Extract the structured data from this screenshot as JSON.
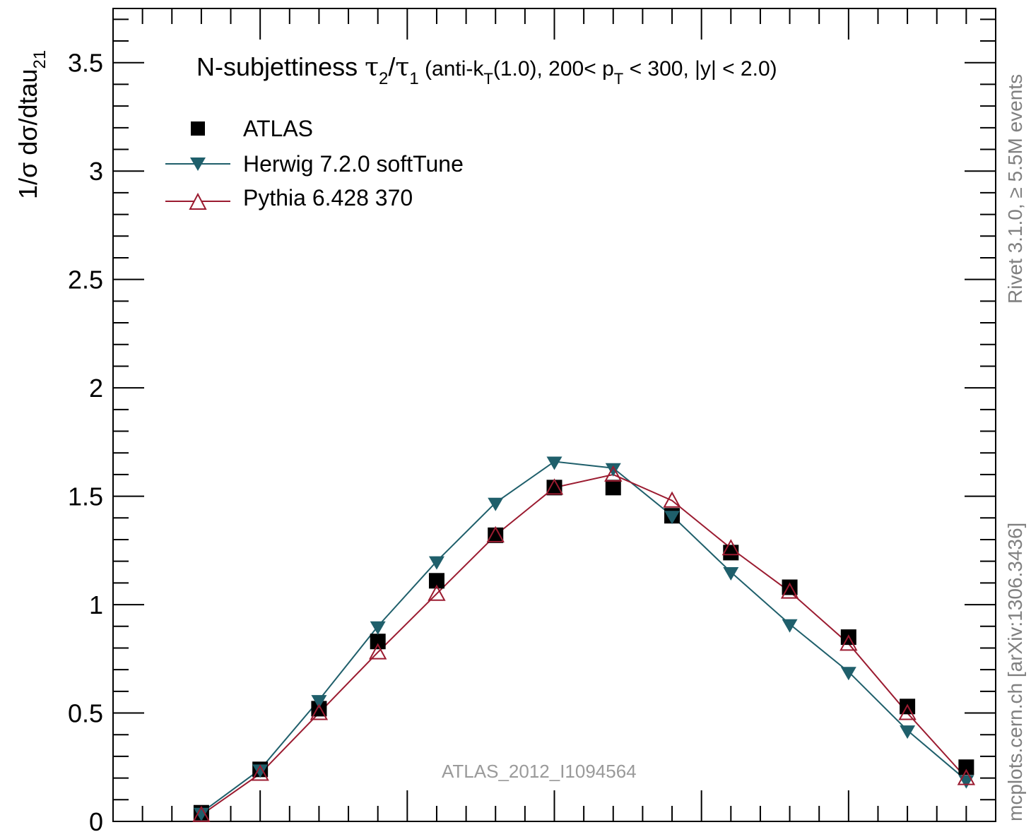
{
  "chart_data": {
    "type": "line",
    "title": {
      "prefix": "N-subjettiness ",
      "tau": "τ",
      "sub2": "2",
      "slash": "/",
      "sub1": "1",
      "detail_a": " (anti-k",
      "sub_t": "T",
      "detail_b": "(1.0), 200< p",
      "sub_t2": "T",
      "detail_c": " < 300, |y| < 2.0)"
    },
    "ylabel": "1/σ dσ/dtau",
    "ylabel_sub": "21",
    "xlabel": "",
    "ylim": [
      0,
      3.75
    ],
    "xlim": [
      0,
      1.2
    ],
    "yticks": [
      "0",
      "0.5",
      "1",
      "1.5",
      "2",
      "2.5",
      "3",
      "3.5"
    ],
    "legend_position": "top-left",
    "series": [
      {
        "name": "ATLAS",
        "marker": "square",
        "color": "#000000",
        "x": [
          0.12,
          0.2,
          0.28,
          0.36,
          0.44,
          0.52,
          0.6,
          0.68,
          0.76,
          0.84,
          0.92,
          1.0,
          1.08,
          1.16
        ],
        "values": [
          0.04,
          0.24,
          0.52,
          0.83,
          1.11,
          1.32,
          1.54,
          1.54,
          1.41,
          1.24,
          1.08,
          0.85,
          0.53,
          0.25
        ]
      },
      {
        "name": "Herwig 7.2.0 softTune",
        "marker": "triangle-down",
        "color": "#1f5f6b",
        "x": [
          0.12,
          0.2,
          0.28,
          0.36,
          0.44,
          0.52,
          0.6,
          0.68,
          0.76,
          0.84,
          0.92,
          1.0,
          1.08,
          1.16
        ],
        "values": [
          0.04,
          0.24,
          0.56,
          0.9,
          1.2,
          1.47,
          1.66,
          1.63,
          1.41,
          1.15,
          0.91,
          0.69,
          0.42,
          0.19
        ]
      },
      {
        "name": "Pythia 6.428 370",
        "marker": "triangle-up-open",
        "color": "#9b1b30",
        "x": [
          0.12,
          0.2,
          0.28,
          0.36,
          0.44,
          0.52,
          0.6,
          0.68,
          0.76,
          0.84,
          0.92,
          1.0,
          1.08,
          1.16
        ],
        "values": [
          0.03,
          0.22,
          0.5,
          0.78,
          1.05,
          1.32,
          1.54,
          1.6,
          1.48,
          1.26,
          1.06,
          0.82,
          0.5,
          0.2
        ]
      }
    ],
    "annotations": {
      "rivet": "Rivet 3.1.0, ≥ 5.5M events",
      "mcplots": "mcplots.cern.ch [arXiv:1306.3436]",
      "analysis": "ATLAS_2012_I1094564"
    }
  }
}
